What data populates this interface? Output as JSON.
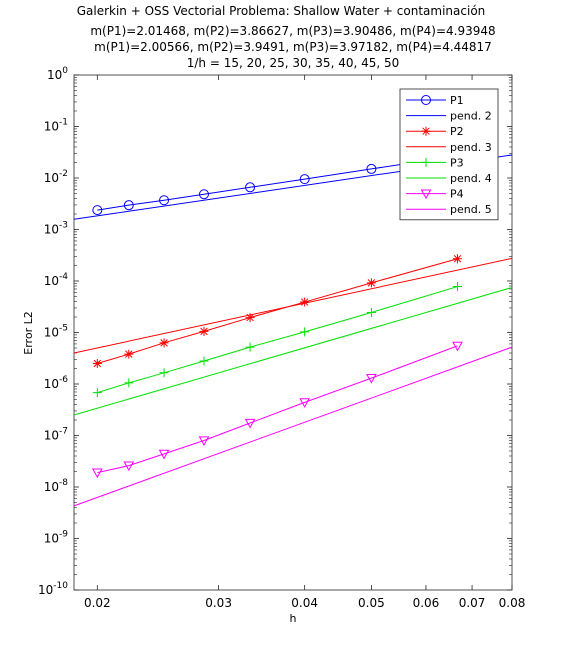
{
  "title_lines": [
    "Galerkin + OSS  Vectorial        Problema: Shallow Water + contaminación",
    "m(P1)=2.01468,    m(P2)=3.86627,    m(P3)=3.90486,    m(P4)=4.93948",
    "m(P1)=2.00566,    m(P2)=3.9491,    m(P3)=3.97182,    m(P4)=4.44817",
    "1/h = 15, 20, 25, 30, 35, 40, 45, 50"
  ],
  "chart_data": {
    "type": "line",
    "xscale": "log",
    "yscale": "log",
    "xlabel": "h",
    "ylabel": "Error L2",
    "xlim": [
      0.0185,
      0.08
    ],
    "ylim": [
      1e-10,
      1
    ],
    "xticks": [
      {
        "value": 0.02,
        "label": "0.02"
      },
      {
        "value": 0.03,
        "label": "0.03"
      },
      {
        "value": 0.04,
        "label": "0.04"
      },
      {
        "value": 0.05,
        "label": "0.05"
      },
      {
        "value": 0.06,
        "label": "0.06"
      },
      {
        "value": 0.07,
        "label": "0.07"
      },
      {
        "value": 0.08,
        "label": "0.08"
      }
    ],
    "yticks": [
      {
        "exp": -10
      },
      {
        "exp": -9
      },
      {
        "exp": -8
      },
      {
        "exp": -7
      },
      {
        "exp": -6
      },
      {
        "exp": -5
      },
      {
        "exp": -4
      },
      {
        "exp": -3
      },
      {
        "exp": -2
      },
      {
        "exp": -1
      },
      {
        "exp": 0
      }
    ],
    "h": [
      0.02,
      0.02222,
      0.025,
      0.02857,
      0.03333,
      0.04,
      0.05,
      0.06667
    ],
    "legend_position": "top-right",
    "series": [
      {
        "name": "P1",
        "kind": "marker",
        "marker": "circle",
        "color": "#0000ff",
        "values": [
          0.00238,
          0.00297,
          0.0037,
          0.00484,
          0.0066,
          0.0095,
          0.015,
          0.027
        ]
      },
      {
        "name": "pend. 2",
        "kind": "line",
        "color": "#0000ff",
        "x": [
          0.0185,
          0.08
        ],
        "values": [
          0.00158,
          0.028
        ]
      },
      {
        "name": "P2",
        "kind": "marker",
        "marker": "asterisk",
        "color": "#ff0000",
        "values": [
          2.5e-06,
          3.8e-06,
          6.3e-06,
          1.05e-05,
          1.95e-05,
          3.9e-05,
          9.2e-05,
          0.00027
        ]
      },
      {
        "name": "pend. 3",
        "kind": "line",
        "color": "#ff0000",
        "x": [
          0.0185,
          0.08
        ],
        "values": [
          4e-06,
          0.000275
        ]
      },
      {
        "name": "P3",
        "kind": "marker",
        "marker": "plus",
        "color": "#00e000",
        "values": [
          6.8e-07,
          1.05e-06,
          1.65e-06,
          2.8e-06,
          5.2e-06,
          1.03e-05,
          2.45e-05,
          7.8e-05
        ]
      },
      {
        "name": "pend. 4",
        "kind": "line",
        "color": "#00e000",
        "x": [
          0.0185,
          0.08
        ],
        "values": [
          2.5e-07,
          7.5e-05
        ]
      },
      {
        "name": "P4",
        "kind": "marker",
        "marker": "triangle-down",
        "color": "#ff00ff",
        "values": [
          1.9e-08,
          2.6e-08,
          4.4e-08,
          8e-08,
          1.75e-07,
          4.4e-07,
          1.3e-06,
          5.5e-06
        ]
      },
      {
        "name": "pend. 5",
        "kind": "line",
        "color": "#ff00ff",
        "x": [
          0.0185,
          0.08
        ],
        "values": [
          4.3e-09,
          5.2e-06
        ]
      }
    ]
  }
}
